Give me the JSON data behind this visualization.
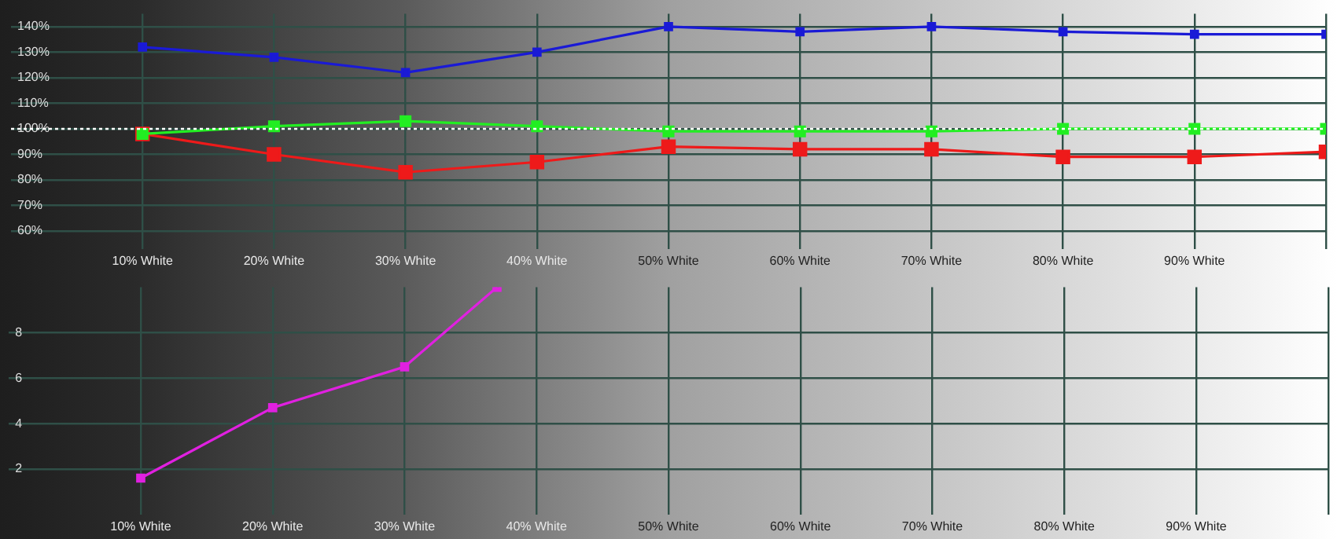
{
  "chart_data": [
    {
      "type": "line",
      "x": [
        10,
        20,
        30,
        40,
        50,
        60,
        70,
        80,
        90,
        100
      ],
      "xlim": [
        0,
        100
      ],
      "xticks": [
        {
          "value": 10,
          "label": "10% White"
        },
        {
          "value": 20,
          "label": "20% White"
        },
        {
          "value": 30,
          "label": "30% White"
        },
        {
          "value": 40,
          "label": "40% White"
        },
        {
          "value": 50,
          "label": "50% White"
        },
        {
          "value": 60,
          "label": "60% White"
        },
        {
          "value": 70,
          "label": "70% White"
        },
        {
          "value": 80,
          "label": "80% White"
        },
        {
          "value": 90,
          "label": "90% White"
        },
        {
          "value": 100,
          "label": null
        }
      ],
      "ylim": [
        53,
        145
      ],
      "yticks": [
        {
          "value": 60,
          "label": "60%"
        },
        {
          "value": 70,
          "label": "70%"
        },
        {
          "value": 80,
          "label": "80%"
        },
        {
          "value": 90,
          "label": "90%"
        },
        {
          "value": 100,
          "label": "100%"
        },
        {
          "value": 110,
          "label": "110%"
        },
        {
          "value": 120,
          "label": "120%"
        },
        {
          "value": 130,
          "label": "130%"
        },
        {
          "value": 140,
          "label": "140%"
        }
      ],
      "series": [
        {
          "color": "#1a1ad6",
          "values": [
            132,
            128,
            122,
            130,
            140,
            138,
            140,
            138,
            137,
            137
          ]
        },
        {
          "color": "#22ee22",
          "values": [
            98,
            101,
            103,
            101,
            99,
            99,
            99,
            100,
            100,
            100
          ]
        },
        {
          "color": "#ee1a1a",
          "values": [
            98,
            90,
            83,
            87,
            93,
            92,
            92,
            89,
            89,
            91
          ]
        }
      ],
      "ref_lines": [
        {
          "axis": "y",
          "value": 100,
          "color": "#ffffff",
          "line_style": "dotted"
        }
      ],
      "grid": true,
      "marker": "square",
      "line_style": "solid"
    },
    {
      "type": "line",
      "x": [
        10,
        20,
        30,
        37
      ],
      "xlim": [
        0,
        100
      ],
      "xticks": [
        {
          "value": 10,
          "label": "10% White"
        },
        {
          "value": 20,
          "label": "20% White"
        },
        {
          "value": 30,
          "label": "30% White"
        },
        {
          "value": 40,
          "label": "40% White"
        },
        {
          "value": 50,
          "label": "50% White"
        },
        {
          "value": 60,
          "label": "60% White"
        },
        {
          "value": 70,
          "label": "70% White"
        },
        {
          "value": 80,
          "label": "80% White"
        },
        {
          "value": 90,
          "label": "90% White"
        },
        {
          "value": 100,
          "label": null
        }
      ],
      "ylim": [
        0,
        10
      ],
      "yticks": [
        2,
        4,
        6,
        8
      ],
      "series": [
        {
          "color": "#e020e0",
          "values": [
            1.6,
            4.7,
            6.5,
            10
          ]
        }
      ],
      "grid": true,
      "marker": "square",
      "line_style": "solid"
    }
  ]
}
